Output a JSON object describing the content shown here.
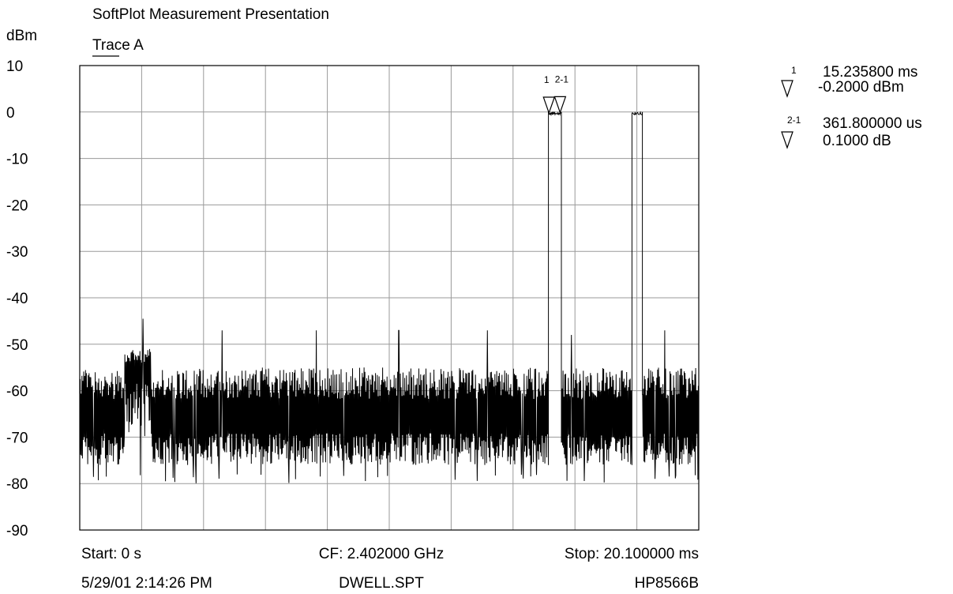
{
  "header": {
    "title": "SoftPlot Measurement Presentation",
    "unit_label": "dBm",
    "trace_label": "Trace A"
  },
  "markers": [
    {
      "label": "1",
      "value": "15.235800 ms",
      "amplitude": "-0.2000 dBm",
      "time_ms": 15.2358,
      "level_dbm": -0.2
    },
    {
      "label": "2-1",
      "value": "361.800000 us",
      "amplitude": "0.1000 dB",
      "time_ms": 15.5976,
      "level_dbm": -0.1
    }
  ],
  "footer": {
    "start": "Start: 0 s",
    "center": "CF: 2.402000 GHz",
    "stop": "Stop: 20.100000 ms",
    "timestamp": "5/29/01 2:14:26 PM",
    "filename": "DWELL.SPT",
    "instrument": "HP8566B"
  },
  "chart_data": {
    "type": "line",
    "title": "SoftPlot Measurement Presentation",
    "ylabel": "dBm",
    "series_label": "Trace A",
    "x_unit": "ms",
    "xlim": [
      0,
      20.1
    ],
    "ylim": [
      -90,
      10
    ],
    "yticks": [
      10,
      0,
      -10,
      -20,
      -30,
      -40,
      -50,
      -60,
      -70,
      -80,
      -90
    ],
    "x_divisions": 10,
    "grid": true,
    "noise_floor": {
      "min_dbm": -76,
      "max_dbm": -55
    },
    "pulses": [
      {
        "start_ms": 15.21,
        "stop_ms": 15.64,
        "level_dbm": 0
      },
      {
        "start_ms": 17.92,
        "stop_ms": 18.27,
        "level_dbm": 0
      }
    ],
    "spikes": [
      {
        "x_ms": 2.05,
        "dbm": -44.5
      },
      {
        "x_ms": 4.62,
        "dbm": -47
      },
      {
        "x_ms": 7.68,
        "dbm": -47
      },
      {
        "x_ms": 10.36,
        "dbm": -47
      },
      {
        "x_ms": 13.24,
        "dbm": -47
      },
      {
        "x_ms": 15.96,
        "dbm": -48
      },
      {
        "x_ms": 18.99,
        "dbm": -47
      }
    ]
  }
}
